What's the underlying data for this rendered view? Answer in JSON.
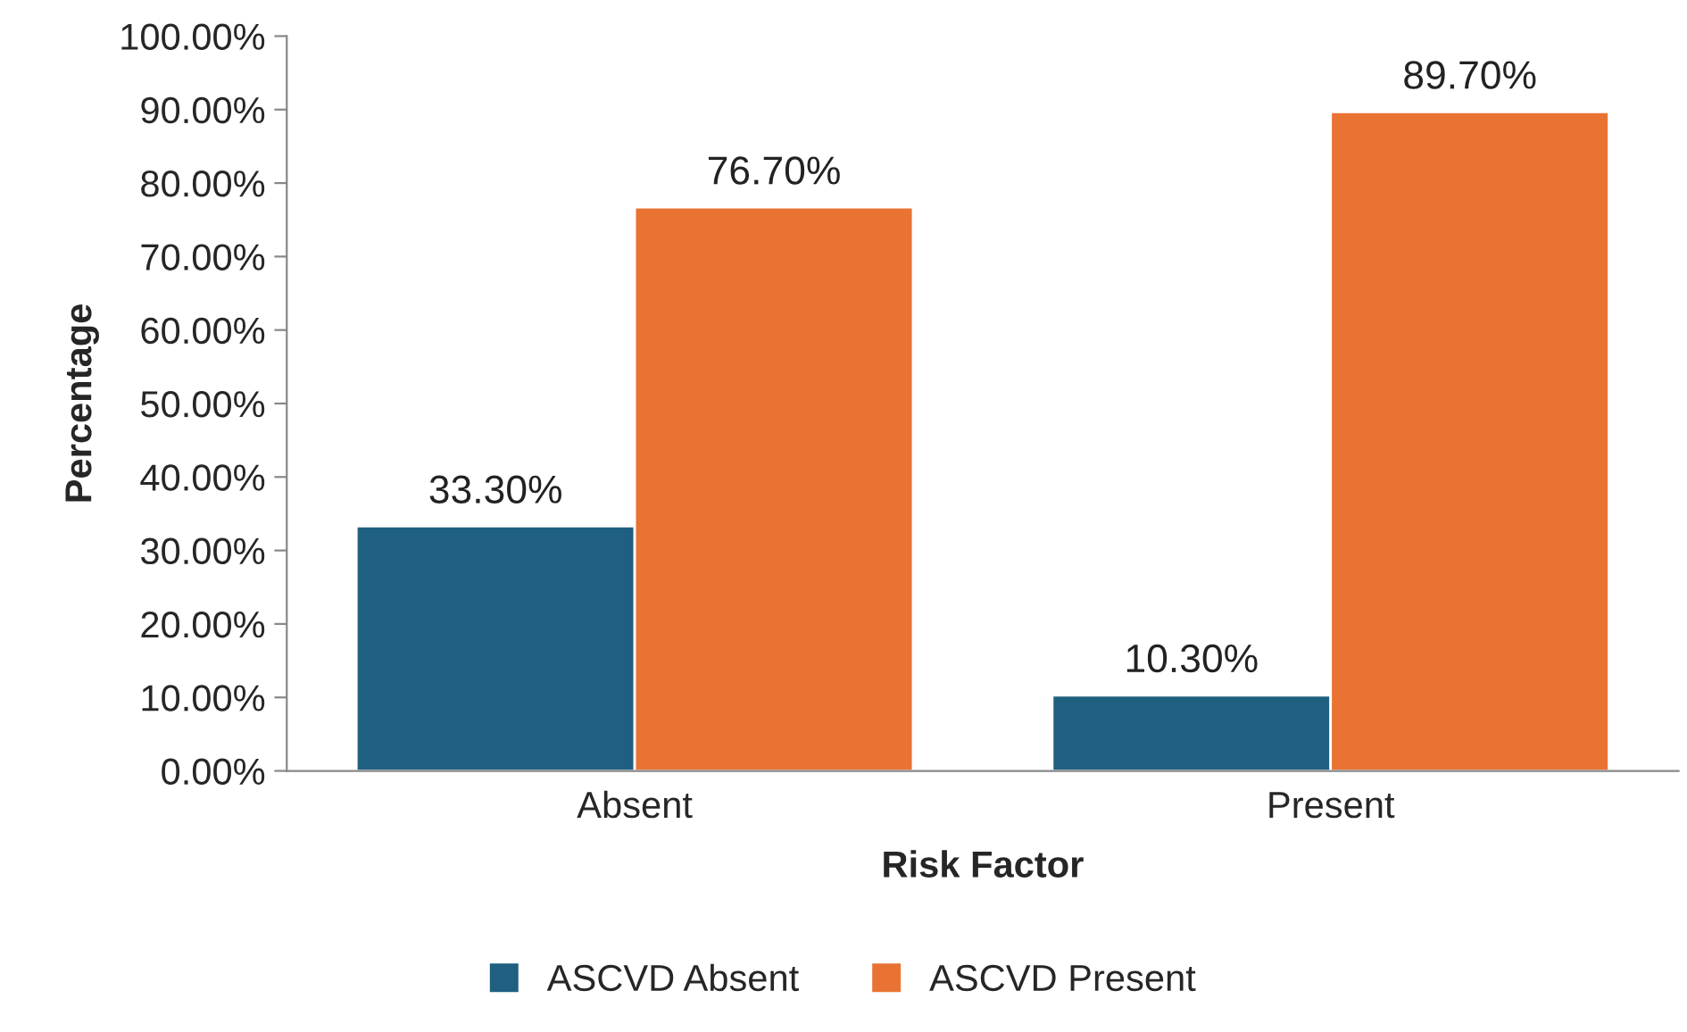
{
  "chart_data": {
    "type": "bar",
    "xlabel": "Risk Factor",
    "ylabel": "Percentage",
    "categories": [
      "Absent",
      "Present"
    ],
    "series": [
      {
        "name": "ASCVD Absent",
        "color": "#1f5f80",
        "values": [
          33.3,
          10.3
        ],
        "value_labels": [
          "33.30%",
          "10.30%"
        ]
      },
      {
        "name": "ASCVD Present",
        "color": "#e87333",
        "values": [
          76.7,
          89.7
        ],
        "value_labels": [
          "76.70%",
          "89.70%"
        ]
      }
    ],
    "ylim": [
      0,
      100
    ],
    "yticks": [
      {
        "value": 0,
        "label": "0.00%"
      },
      {
        "value": 10,
        "label": "10.00%"
      },
      {
        "value": 20,
        "label": "20.00%"
      },
      {
        "value": 30,
        "label": "30.00%"
      },
      {
        "value": 40,
        "label": "40.00%"
      },
      {
        "value": 50,
        "label": "50.00%"
      },
      {
        "value": 60,
        "label": "60.00%"
      },
      {
        "value": 70,
        "label": "70.00%"
      },
      {
        "value": 80,
        "label": "80.00%"
      },
      {
        "value": 90,
        "label": "90.00%"
      },
      {
        "value": 100,
        "label": "100.00%"
      }
    ],
    "grid": false,
    "legend": "bottom"
  }
}
